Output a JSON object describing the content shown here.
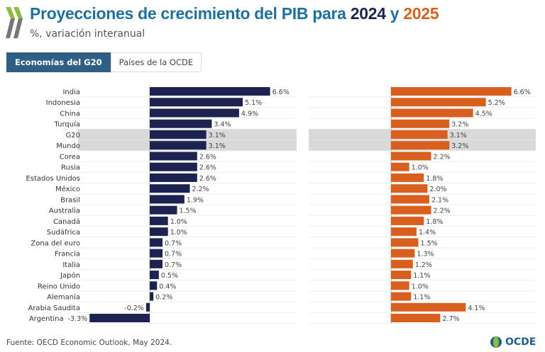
{
  "header": {
    "title_main": "Proyecciones de crecimiento del PIB para ",
    "year1": "2024",
    "conj": " y ",
    "year2": "2025",
    "subtitle": "%, variación interanual"
  },
  "tabs": [
    {
      "label": "Economías del G20",
      "active": true
    },
    {
      "label": "Países de la OCDE",
      "active": false
    }
  ],
  "footer": {
    "source": "Fuente: OECD Economic Outlook, May 2024.",
    "logo_text": "OCDE"
  },
  "colors": {
    "series2024": "#1c2350",
    "series2025": "#d95f1e",
    "highlight": "#d9d9d9"
  },
  "chart_data": {
    "type": "bar",
    "orientation": "horizontal",
    "categories": [
      "India",
      "Indonesia",
      "China",
      "Turquía",
      "G20",
      "Mundo",
      "Corea",
      "Rusia",
      "Estados Unidos",
      "México",
      "Brasil",
      "Australia",
      "Canadá",
      "Sudáfrica",
      "Zona del euro",
      "Francia",
      "Italia",
      "Japón",
      "Reino Unido",
      "Alemania",
      "Arabia Saudita",
      "Argentina"
    ],
    "highlighted": [
      "G20",
      "Mundo"
    ],
    "series": [
      {
        "name": "2024",
        "values": [
          6.6,
          5.1,
          4.9,
          3.4,
          3.1,
          3.1,
          2.6,
          2.6,
          2.6,
          2.2,
          1.9,
          1.5,
          1.0,
          1.0,
          0.7,
          0.7,
          0.7,
          0.5,
          0.4,
          0.2,
          -0.2,
          -3.3
        ]
      },
      {
        "name": "2025",
        "values": [
          6.6,
          5.2,
          4.5,
          3.2,
          3.1,
          3.2,
          2.2,
          1.0,
          1.8,
          2.0,
          2.1,
          2.2,
          1.8,
          1.4,
          1.5,
          1.3,
          1.2,
          1.1,
          1.0,
          1.1,
          4.1,
          2.7
        ]
      }
    ],
    "value_suffix": "%",
    "grid": true
  }
}
